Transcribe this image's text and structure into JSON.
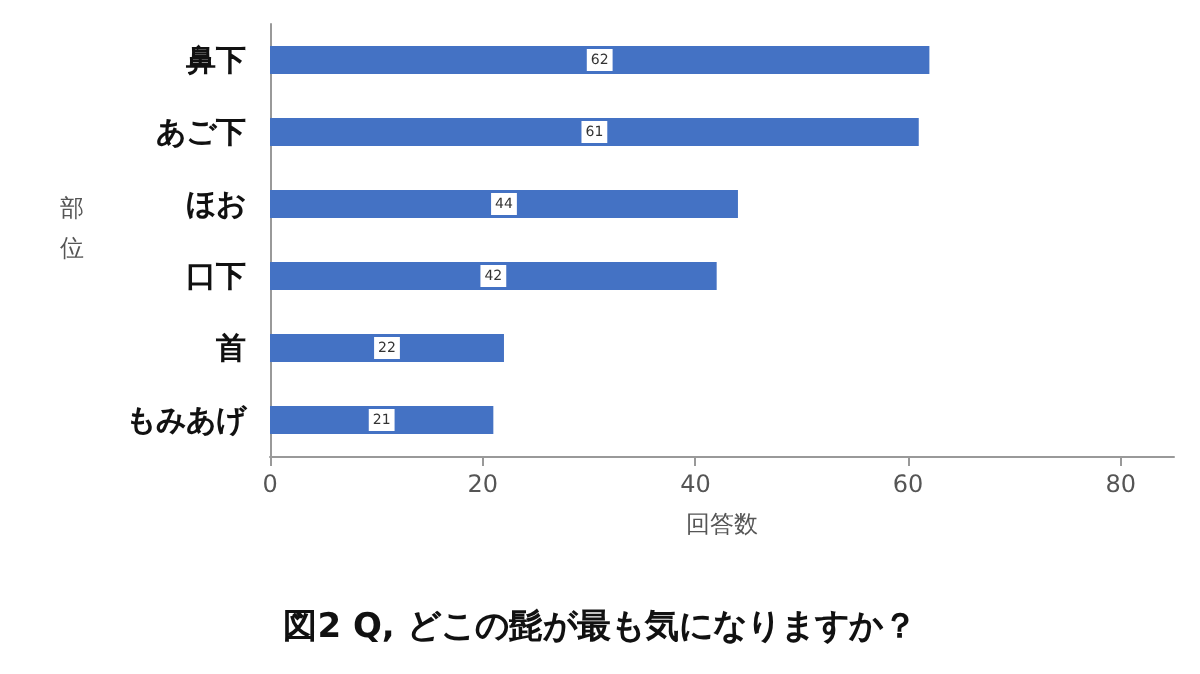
{
  "chart_data": {
    "type": "bar",
    "orientation": "horizontal",
    "title": "図2 Q, どこの髭が最も気になりますか？",
    "xlabel": "回答数",
    "ylabel": "部位",
    "categories": [
      "鼻下",
      "あご下",
      "ほお",
      "口下",
      "首",
      "もみあげ"
    ],
    "values": [
      62,
      61,
      44,
      42,
      22,
      21
    ],
    "color": "#4472c4",
    "data_labels": true,
    "xlim": [
      0,
      85
    ],
    "xticks": [
      0,
      20,
      40,
      60,
      80
    ],
    "grid": false
  }
}
